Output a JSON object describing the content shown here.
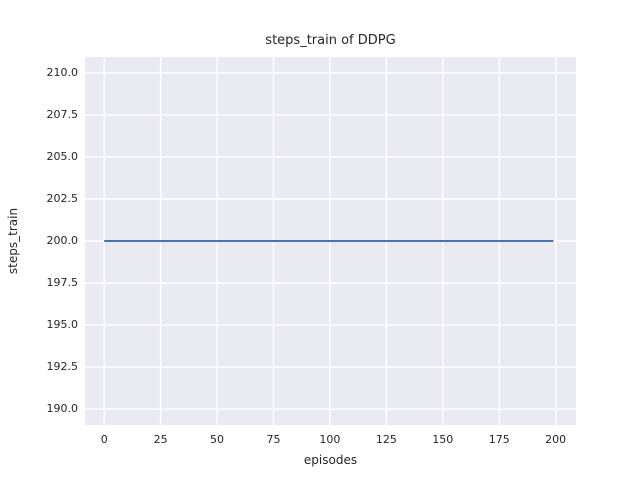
{
  "figure": {
    "background_color": "#ffffff",
    "axes_background_color": "#eaeaf2",
    "grid_color": "#ffffff",
    "text_color": "#262626"
  },
  "chart_data": {
    "type": "line",
    "title": "steps_train of DDPG",
    "xlabel": "episodes",
    "ylabel": "steps_train",
    "xlim": [
      -8.5,
      209
    ],
    "ylim": [
      189.05,
      210.95
    ],
    "xticks": [
      0,
      25,
      50,
      75,
      100,
      125,
      150,
      175,
      200
    ],
    "xtick_labels": [
      "0",
      "25",
      "50",
      "75",
      "100",
      "125",
      "150",
      "175",
      "200"
    ],
    "yticks": [
      190.0,
      192.5,
      195.0,
      197.5,
      200.0,
      202.5,
      205.0,
      207.5,
      210.0
    ],
    "ytick_labels": [
      "190.0",
      "192.5",
      "195.0",
      "197.5",
      "200.0",
      "202.5",
      "205.0",
      "207.5",
      "210.0"
    ],
    "grid": true,
    "legend": "none",
    "series": [
      {
        "name": "steps_train",
        "color": "#4c72b0",
        "line_width": 2,
        "description": "constant value 200 for every episode from 0 to 199",
        "x": [
          0,
          199
        ],
        "y": [
          200,
          200
        ]
      }
    ]
  }
}
